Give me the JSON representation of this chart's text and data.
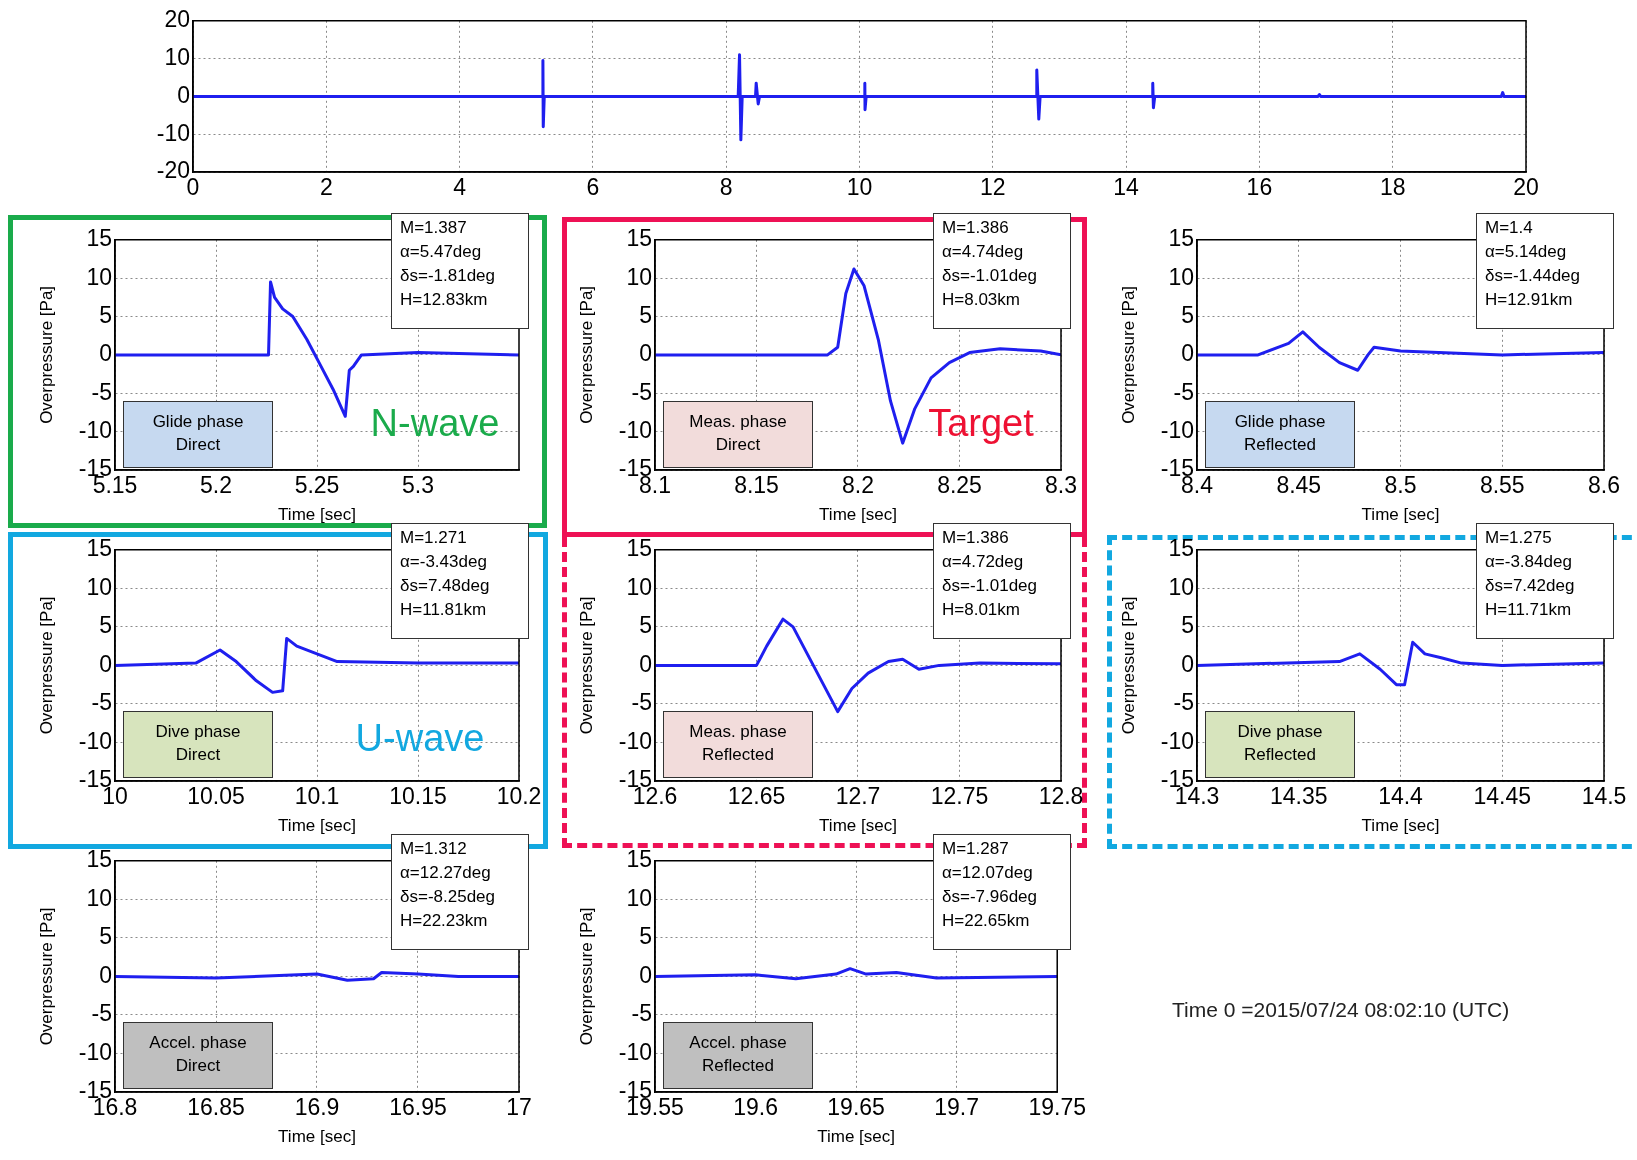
{
  "chart_data": [
    {
      "type": "line",
      "x": [
        0,
        2,
        5.24,
        5.25,
        5.255,
        5.27,
        8.18,
        8.2,
        8.22,
        8.24,
        8.44,
        8.45,
        8.48,
        8.5,
        10.07,
        10.08,
        10.083,
        10.1,
        12.65,
        12.66,
        12.69,
        12.71,
        14.39,
        14.4,
        14.41,
        14.43,
        16.88,
        16.9,
        16.92,
        19.63,
        19.65,
        19.67,
        20
      ],
      "series": [
        {
          "color": "#1f1fef",
          "values": [
            0,
            0,
            0,
            9.5,
            -8,
            0,
            0,
            11,
            -11.5,
            0,
            0,
            3.5,
            -2,
            0,
            0,
            3.5,
            -3.5,
            0,
            0,
            7,
            -6,
            0,
            0,
            3.5,
            -3,
            0,
            0,
            0.5,
            0,
            0,
            1,
            0,
            0
          ]
        }
      ],
      "xlim": [
        0,
        20
      ],
      "xticks": [
        0,
        2,
        4,
        6,
        8,
        10,
        12,
        14,
        16,
        18,
        20
      ],
      "ylim": [
        -20,
        20
      ],
      "yticks": [
        -20,
        -10,
        0,
        10,
        20
      ],
      "grid": true
    },
    {
      "type": "line",
      "x": [
        5.15,
        5.2,
        5.226,
        5.227,
        5.229,
        5.233,
        5.238,
        5.245,
        5.252,
        5.258,
        5.264,
        5.266,
        5.268,
        5.272,
        5.3,
        5.35
      ],
      "series": [
        {
          "color": "#1f1fef",
          "values": [
            0,
            0,
            0,
            9.5,
            7.5,
            6,
            5,
            2,
            -1.5,
            -4.5,
            -8,
            -2,
            -1.5,
            0,
            0.3,
            0
          ]
        }
      ],
      "xlim": [
        5.15,
        5.35
      ],
      "xticks": [
        5.15,
        5.2,
        5.25,
        5.3
      ],
      "ylim": [
        -15,
        15
      ],
      "yticks": [
        -15,
        -10,
        -5,
        0,
        5,
        10,
        15
      ],
      "grid": true,
      "xlabel": "Time [sec]",
      "ylabel": "Overpressure [Pa]",
      "annotations": [
        "M=1.387\nα=5.47deg\nδs=-1.81deg\nH=12.83km",
        "Glide phase\nDirect",
        "N-wave"
      ]
    },
    {
      "type": "line",
      "x": [
        8.1,
        8.185,
        8.19,
        8.194,
        8.198,
        8.203,
        8.21,
        8.216,
        8.222,
        8.228,
        8.236,
        8.245,
        8.255,
        8.27,
        8.29,
        8.3
      ],
      "series": [
        {
          "color": "#1f1fef",
          "values": [
            0,
            0,
            1,
            8,
            11.2,
            9,
            2,
            -6,
            -11.5,
            -7,
            -3,
            -1,
            0.3,
            0.8,
            0.5,
            0
          ]
        }
      ],
      "xlim": [
        8.1,
        8.3
      ],
      "xticks": [
        8.1,
        8.15,
        8.2,
        8.25,
        8.3
      ],
      "ylim": [
        -15,
        15
      ],
      "yticks": [
        -15,
        -10,
        -5,
        0,
        5,
        10,
        15
      ],
      "grid": true,
      "xlabel": "Time [sec]",
      "ylabel": "Overpressure [Pa]",
      "annotations": [
        "M=1.386\nα=4.74deg\nδs=-1.01deg\nH=8.03km",
        "Meas. phase\nDirect",
        "Target"
      ]
    },
    {
      "type": "line",
      "x": [
        8.4,
        8.43,
        8.445,
        8.452,
        8.46,
        8.47,
        8.479,
        8.484,
        8.487,
        8.5,
        8.55,
        8.6
      ],
      "series": [
        {
          "color": "#1f1fef",
          "values": [
            0,
            0,
            1.5,
            3,
            1,
            -1,
            -2,
            0,
            1,
            0.5,
            0,
            0.3
          ]
        }
      ],
      "xlim": [
        8.4,
        8.6
      ],
      "xticks": [
        8.4,
        8.45,
        8.5,
        8.55,
        8.6
      ],
      "ylim": [
        -15,
        15
      ],
      "yticks": [
        -15,
        -10,
        -5,
        0,
        5,
        10,
        15
      ],
      "grid": true,
      "xlabel": "Time [sec]",
      "ylabel": "Overpressure [Pa]",
      "annotations": [
        "M=1.4\nα=5.14deg\nδs=-1.44deg\nH=12.91km",
        "Glide phase\nReflected"
      ]
    },
    {
      "type": "line",
      "x": [
        10,
        10.04,
        10.052,
        10.06,
        10.07,
        10.078,
        10.083,
        10.085,
        10.09,
        10.1,
        10.11,
        10.15,
        10.2
      ],
      "series": [
        {
          "color": "#1f1fef",
          "values": [
            0,
            0.3,
            2,
            0.5,
            -2,
            -3.5,
            -3.3,
            3.5,
            2.5,
            1.5,
            0.5,
            0.3,
            0.3
          ]
        }
      ],
      "xlim": [
        10,
        10.2
      ],
      "xticks": [
        10,
        10.05,
        10.1,
        10.15,
        10.2
      ],
      "ylim": [
        -15,
        15
      ],
      "yticks": [
        -15,
        -10,
        -5,
        0,
        5,
        10,
        15
      ],
      "grid": true,
      "xlabel": "Time [sec]",
      "ylabel": "Overpressure [Pa]",
      "annotations": [
        "M=1.271\nα=-3.43deg\nδs=7.48deg\nH=11.81km",
        "Dive phase\nDirect",
        "U-wave"
      ]
    },
    {
      "type": "line",
      "x": [
        12.6,
        12.65,
        12.655,
        12.663,
        12.668,
        12.68,
        12.69,
        12.697,
        12.705,
        12.715,
        12.722,
        12.73,
        12.74,
        12.76,
        12.8
      ],
      "series": [
        {
          "color": "#1f1fef",
          "values": [
            0,
            0,
            2.5,
            6,
            5,
            -1,
            -6,
            -3,
            -1,
            0.5,
            0.8,
            -0.5,
            0,
            0.3,
            0.2
          ]
        }
      ],
      "xlim": [
        12.6,
        12.8
      ],
      "xticks": [
        12.6,
        12.65,
        12.7,
        12.75,
        12.8
      ],
      "ylim": [
        -15,
        15
      ],
      "yticks": [
        -15,
        -10,
        -5,
        0,
        5,
        10,
        15
      ],
      "grid": true,
      "xlabel": "Time [sec]",
      "ylabel": "Overpressure [Pa]",
      "annotations": [
        "M=1.386\nα=4.72deg\nδs=-1.01deg\nH=8.01km",
        "Meas. phase\nReflected"
      ]
    },
    {
      "type": "line",
      "x": [
        14.3,
        14.37,
        14.38,
        14.39,
        14.398,
        14.402,
        14.406,
        14.412,
        14.42,
        14.43,
        14.45,
        14.5
      ],
      "series": [
        {
          "color": "#1f1fef",
          "values": [
            0,
            0.5,
            1.5,
            -0.5,
            -2.5,
            -2.5,
            3,
            1.5,
            1,
            0.3,
            0,
            0.3
          ]
        }
      ],
      "xlim": [
        14.3,
        14.5
      ],
      "xticks": [
        14.3,
        14.35,
        14.4,
        14.45,
        14.5
      ],
      "ylim": [
        -15,
        15
      ],
      "yticks": [
        -15,
        -10,
        -5,
        0,
        5,
        10,
        15
      ],
      "grid": true,
      "xlabel": "Time [sec]",
      "ylabel": "Overpressure [Pa]",
      "annotations": [
        "M=1.275\nα=-3.84deg\nδs=7.42deg\nH=11.71km",
        "Dive phase\nReflected"
      ]
    },
    {
      "type": "line",
      "x": [
        16.8,
        16.85,
        16.9,
        16.915,
        16.928,
        16.932,
        16.95,
        16.97,
        17
      ],
      "series": [
        {
          "color": "#1f1fef",
          "values": [
            0,
            -0.2,
            0.3,
            -0.5,
            -0.3,
            0.5,
            0.3,
            0,
            0
          ]
        }
      ],
      "xlim": [
        16.8,
        17
      ],
      "xticks": [
        16.8,
        16.85,
        16.9,
        16.95,
        17
      ],
      "ylim": [
        -15,
        15
      ],
      "yticks": [
        -15,
        -10,
        -5,
        0,
        5,
        10,
        15
      ],
      "grid": true,
      "xlabel": "Time [sec]",
      "ylabel": "Overpressure [Pa]",
      "annotations": [
        "M=1.312\nα=12.27deg\nδs=-8.25deg\nH=22.23km",
        "Accel. phase\nDirect"
      ]
    },
    {
      "type": "line",
      "x": [
        19.55,
        19.6,
        19.62,
        19.64,
        19.647,
        19.655,
        19.67,
        19.69,
        19.75
      ],
      "series": [
        {
          "color": "#1f1fef",
          "values": [
            0,
            0.2,
            -0.3,
            0.3,
            1,
            0.3,
            0.5,
            -0.2,
            0
          ]
        }
      ],
      "xlim": [
        19.55,
        19.75
      ],
      "xticks": [
        19.55,
        19.6,
        19.65,
        19.7,
        19.75
      ],
      "ylim": [
        -15,
        15
      ],
      "yticks": [
        -15,
        -10,
        -5,
        0,
        5,
        10,
        15
      ],
      "grid": true,
      "xlabel": "Time [sec]",
      "ylabel": "Overpressure [Pa]",
      "annotations": [
        "M=1.287\nα=12.07deg\nδs=-7.96deg\nH=22.65km",
        "Accel. phase\nReflected",
        "Time 0 =2015/07/24 08:02:10 (UTC)"
      ]
    }
  ]
}
